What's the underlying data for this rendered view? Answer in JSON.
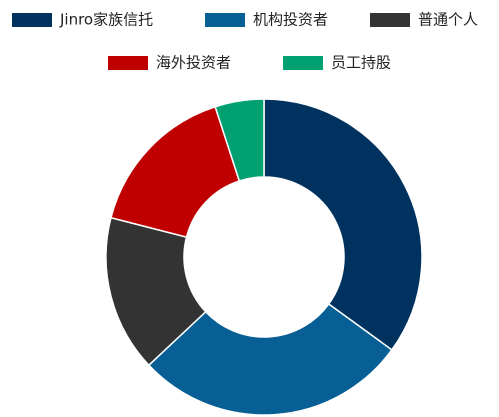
{
  "chart_data": {
    "type": "donut",
    "categories": [
      "Jinro家族信托",
      "机构投资者",
      "普通个人",
      "海外投资者",
      "员工持股"
    ],
    "values": [
      35,
      28,
      16,
      16,
      5
    ],
    "colors": [
      "#00325f",
      "#075f95",
      "#333333",
      "#c00000",
      "#00a070"
    ]
  }
}
